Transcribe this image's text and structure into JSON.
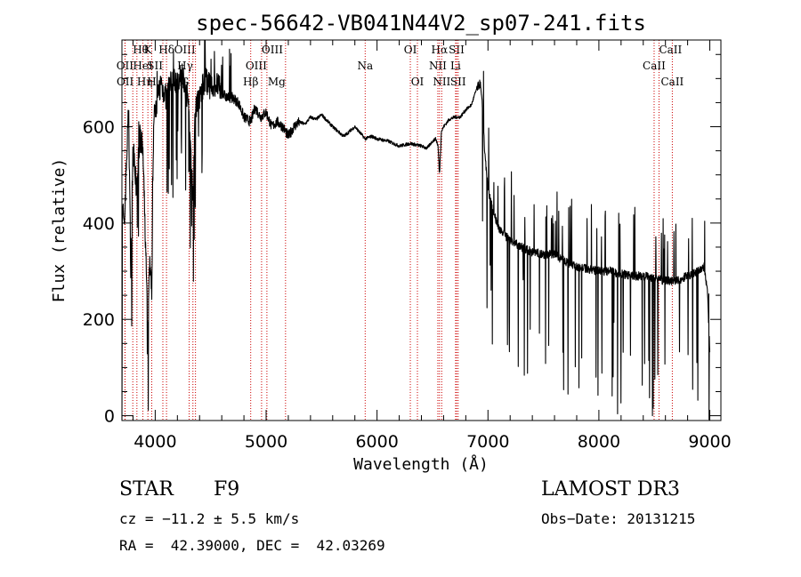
{
  "chart_data": {
    "type": "line",
    "title": "spec-56642-VB041N44V2_sp07-241.fits",
    "xlabel": "Wavelength (Å)",
    "ylabel": "Flux (relative)",
    "xlim": [
      3700,
      9100
    ],
    "ylim": [
      -10,
      780
    ],
    "x_ticks": [
      4000,
      5000,
      6000,
      7000,
      8000,
      9000
    ],
    "y_ticks": [
      0,
      200,
      400,
      600
    ],
    "x_minor_step": 200,
    "y_minor_step": 50,
    "series": [
      {
        "name": "flux",
        "color": "#000000",
        "x": [
          3700,
          3705,
          3720,
          3740,
          3760,
          3780,
          3800,
          3830,
          3860,
          3890,
          3920,
          3933,
          3950,
          3968,
          3985,
          4000,
          4050,
          4100,
          4150,
          4200,
          4250,
          4300,
          4340,
          4360,
          4400,
          4450,
          4500,
          4550,
          4600,
          4650,
          4700,
          4750,
          4800,
          4861,
          4900,
          4950,
          5000,
          5050,
          5100,
          5150,
          5200,
          5250,
          5300,
          5350,
          5400,
          5450,
          5500,
          5600,
          5700,
          5800,
          5893,
          5950,
          6000,
          6100,
          6200,
          6300,
          6400,
          6450,
          6500,
          6530,
          6550,
          6563,
          6580,
          6600,
          6650,
          6700,
          6750,
          6800,
          6850,
          6900,
          6930,
          6950,
          6970,
          7000,
          7050,
          7100,
          7150,
          7200,
          7300,
          7400,
          7500,
          7600,
          7700,
          7800,
          7900,
          8000,
          8100,
          8200,
          8300,
          8400,
          8500,
          8600,
          8700,
          8800,
          8900,
          8950,
          8980,
          9000
        ],
        "y": [
          0,
          450,
          380,
          520,
          640,
          300,
          560,
          470,
          580,
          540,
          300,
          160,
          330,
          250,
          600,
          640,
          690,
          660,
          700,
          690,
          710,
          650,
          440,
          640,
          660,
          700,
          680,
          690,
          670,
          660,
          660,
          650,
          620,
          610,
          640,
          620,
          630,
          600,
          610,
          600,
          580,
          600,
          610,
          605,
          620,
          615,
          625,
          600,
          580,
          600,
          575,
          580,
          575,
          570,
          560,
          565,
          560,
          555,
          570,
          575,
          560,
          500,
          590,
          600,
          615,
          620,
          620,
          635,
          645,
          680,
          690,
          640,
          550,
          470,
          420,
          390,
          375,
          365,
          350,
          340,
          335,
          335,
          320,
          310,
          305,
          300,
          300,
          295,
          290,
          290,
          285,
          280,
          280,
          290,
          300,
          310,
          250,
          130
        ]
      }
    ],
    "lines": [
      {
        "label": "Hθ",
        "x": 3798,
        "row": 0,
        "align": "start"
      },
      {
        "label": "OII",
        "x": 3727,
        "row": 1,
        "align": "middle"
      },
      {
        "label": "OII",
        "x": 3729,
        "row": 2,
        "align": "middle"
      },
      {
        "label": "HeI",
        "x": 3889,
        "row": 1,
        "align": "middle"
      },
      {
        "label": "Hη",
        "x": 3835,
        "row": 2,
        "align": "start"
      },
      {
        "label": "K",
        "x": 3934,
        "row": 0,
        "align": "middle"
      },
      {
        "label": "SII",
        "x": 4069,
        "row": 1,
        "align": "end"
      },
      {
        "label": "H",
        "x": 3969,
        "row": 2,
        "align": "middle"
      },
      {
        "label": "Hδ",
        "x": 4102,
        "row": 0,
        "align": "middle"
      },
      {
        "label": "OIII",
        "x": 4363,
        "row": 0,
        "align": "end"
      },
      {
        "label": "Hγ",
        "x": 4340,
        "row": 1,
        "align": "end"
      },
      {
        "label": "G",
        "x": 4306,
        "row": 2,
        "align": "end"
      },
      {
        "label": "OIII",
        "x": 4959,
        "row": 0,
        "align": "start"
      },
      {
        "label": "OIII",
        "x": 5007,
        "row": 1,
        "align": "end"
      },
      {
        "label": "Hβ",
        "x": 4861,
        "row": 2,
        "align": "middle"
      },
      {
        "label": "Mg",
        "x": 5175,
        "row": 2,
        "align": "end"
      },
      {
        "label": "Na",
        "x": 5893,
        "row": 1,
        "align": "middle"
      },
      {
        "label": "OI",
        "x": 6300,
        "row": 0,
        "align": "middle"
      },
      {
        "label": "OI",
        "x": 6364,
        "row": 2,
        "align": "middle"
      },
      {
        "label": "Hα",
        "x": 6563,
        "row": 0,
        "align": "middle"
      },
      {
        "label": "NII",
        "x": 6548,
        "row": 1,
        "align": "middle"
      },
      {
        "label": "NII",
        "x": 6583,
        "row": 2,
        "align": "middle"
      },
      {
        "label": "SII",
        "x": 6717,
        "row": 0,
        "align": "middle"
      },
      {
        "label": "Li",
        "x": 6708,
        "row": 1,
        "align": "middle"
      },
      {
        "label": "SII",
        "x": 6731,
        "row": 2,
        "align": "middle"
      },
      {
        "label": "CaII",
        "x": 8542,
        "row": 0,
        "align": "start"
      },
      {
        "label": "CaII",
        "x": 8498,
        "row": 1,
        "align": "middle"
      },
      {
        "label": "CaII",
        "x": 8662,
        "row": 2,
        "align": "middle"
      }
    ]
  },
  "info": {
    "object_class": "STAR",
    "subclass": "F9",
    "survey": "LAMOST DR3",
    "cz": "cz = −11.2 ± 5.5 km/s",
    "obs_date": "Obs−Date: 20131215",
    "coords": "RA =  42.39000, DEC =  42.03269"
  }
}
